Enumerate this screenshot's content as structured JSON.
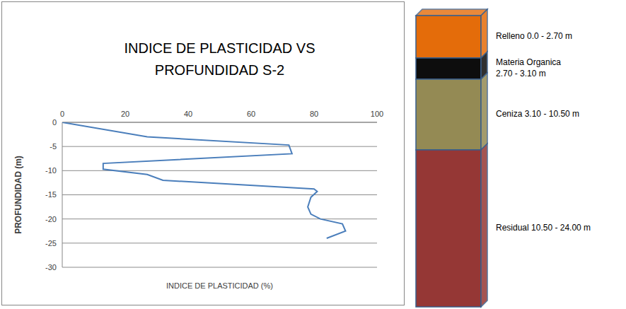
{
  "chart_data": {
    "type": "line",
    "title": "INDICE DE PLASTICIDAD VS PROFUNDIDAD S-2",
    "x_label": "INDICE DE PLASTICIDAD (%)",
    "y_label": "PROFUNDIDAD (m)",
    "x": [
      0,
      27,
      72,
      73,
      13,
      13,
      27,
      32,
      80,
      81,
      79,
      78,
      79,
      82,
      89,
      90,
      84
    ],
    "values": [
      0,
      -3,
      -4.7,
      -6.5,
      -8.5,
      -9.7,
      -10.8,
      -12,
      -13.8,
      -14.3,
      -15.5,
      -17.5,
      -19,
      -20,
      -21,
      -22.5,
      -24
    ],
    "color": "#4a7ebb",
    "xlim": [
      0,
      100
    ],
    "xticks": [
      0,
      20,
      40,
      60,
      80,
      100
    ],
    "ylim": [
      -30,
      0
    ],
    "yticks": [
      -30,
      -25,
      -20,
      -15,
      -10,
      -5,
      0
    ],
    "grid": true
  },
  "stratigraphy": {
    "layers": [
      {
        "label": [
          "Relleno 0.0 - 2.70 m"
        ],
        "color": "#e46c0a"
      },
      {
        "label": [
          "Materia Organica",
          "2.70 - 3.10 m"
        ],
        "color": "#0d0d0d"
      },
      {
        "label": [
          "Ceniza 3.10 - 10.50 m"
        ],
        "color": "#948a54"
      },
      {
        "label": [
          "Residual 10.50 - 24.00 m"
        ],
        "color": "#953735"
      }
    ]
  }
}
